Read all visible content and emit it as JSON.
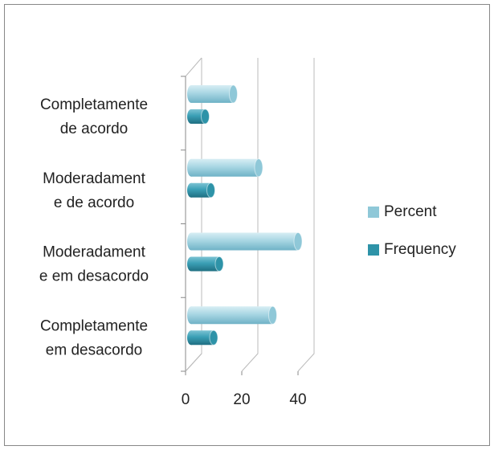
{
  "chart_data": {
    "type": "bar3d_horizontal",
    "categories": [
      [
        "Completamente",
        "de acordo"
      ],
      [
        "Moderadament",
        "e de acordo"
      ],
      [
        "Moderadament",
        "e em desacordo"
      ],
      [
        "Completamente",
        "em desacordo"
      ]
    ],
    "series": [
      {
        "name": "Percent",
        "color": "#8fc8d8",
        "values": [
          15,
          24,
          38,
          29
        ]
      },
      {
        "name": "Frequency",
        "color": "#2e93a8",
        "values": [
          5,
          7,
          10,
          8
        ]
      }
    ],
    "xlim": [
      0,
      40
    ],
    "xticks": [
      0,
      20,
      40
    ],
    "grid": true,
    "legend": "right"
  }
}
